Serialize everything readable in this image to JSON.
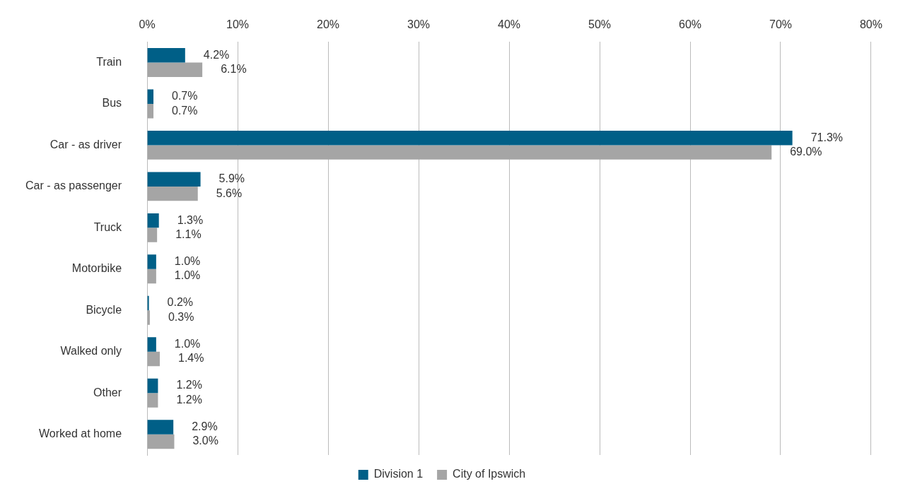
{
  "chart_data": {
    "type": "bar",
    "orientation": "horizontal",
    "categories": [
      "Train",
      "Bus",
      "Car - as driver",
      "Car - as passenger",
      "Truck",
      "Motorbike",
      "Bicycle",
      "Walked only",
      "Other",
      "Worked at home"
    ],
    "series": [
      {
        "name": "Division 1",
        "color": "#005f87",
        "values": [
          4.2,
          0.7,
          71.3,
          5.9,
          1.3,
          1.0,
          0.2,
          1.0,
          1.2,
          2.9
        ],
        "value_labels": [
          "4.2%",
          "0.7%",
          "71.3%",
          "5.9%",
          "1.3%",
          "1.0%",
          "0.2%",
          "1.0%",
          "1.2%",
          "2.9%"
        ]
      },
      {
        "name": "City of Ipswich",
        "color": "#a5a5a5",
        "values": [
          6.1,
          0.7,
          69.0,
          5.6,
          1.1,
          1.0,
          0.3,
          1.4,
          1.2,
          3.0
        ],
        "value_labels": [
          "6.1%",
          "0.7%",
          "69.0%",
          "5.6%",
          "1.1%",
          "1.0%",
          "0.3%",
          "1.4%",
          "1.2%",
          "3.0%"
        ]
      }
    ],
    "xlim": [
      0,
      80
    ],
    "xticks": [
      {
        "value": 0,
        "label": "0%"
      },
      {
        "value": 10,
        "label": "10%"
      },
      {
        "value": 20,
        "label": "20%"
      },
      {
        "value": 30,
        "label": "30%"
      },
      {
        "value": 40,
        "label": "40%"
      },
      {
        "value": 50,
        "label": "50%"
      },
      {
        "value": 60,
        "label": "60%"
      },
      {
        "value": 70,
        "label": "70%"
      },
      {
        "value": 80,
        "label": "80%"
      }
    ],
    "grid": "x",
    "legend": "bottom"
  }
}
